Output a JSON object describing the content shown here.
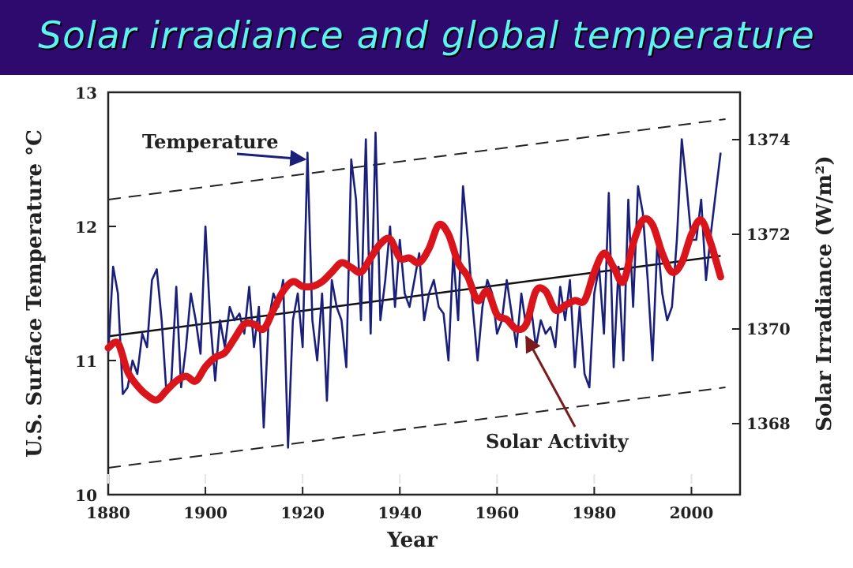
{
  "slide": {
    "title": "Solar irradiance and global temperature"
  },
  "colors": {
    "title_bg": "#2f0a6e",
    "title_text": "#5ef3f3",
    "temperature": "#1a1f7a",
    "solar": "#d9141b",
    "axis": "#222222"
  },
  "chart_data": {
    "type": "line",
    "xlabel": "Year",
    "ylabel_left": "U.S. Surface Temperature °C",
    "ylabel_right": "Solar Irradiance (W/m²)",
    "xlim": [
      1880,
      2010
    ],
    "ylim_left": [
      10.0,
      13.0
    ],
    "ylim_right": [
      1366.5,
      1375.0
    ],
    "x_ticks": [
      1880,
      1900,
      1920,
      1940,
      1960,
      1980,
      2000
    ],
    "y_ticks_left": [
      {
        "value": 10,
        "label": "10"
      },
      {
        "value": 11,
        "label": "11"
      },
      {
        "value": 12,
        "label": "12"
      },
      {
        "value": 13,
        "label": "13"
      }
    ],
    "y_ticks_right": [
      {
        "value": 1368,
        "label": "1368"
      },
      {
        "value": 1370,
        "label": "1370"
      },
      {
        "value": 1372,
        "label": "1372"
      },
      {
        "value": 1374,
        "label": "1374"
      }
    ],
    "annotations": [
      {
        "text": "Temperature",
        "series": "temperature"
      },
      {
        "text": "Solar Activity",
        "series": "solar"
      }
    ],
    "series": [
      {
        "name": "Temperature",
        "axis": "left",
        "x": [
          1880,
          1881,
          1882,
          1883,
          1884,
          1885,
          1886,
          1887,
          1888,
          1889,
          1890,
          1891,
          1892,
          1893,
          1894,
          1895,
          1896,
          1897,
          1898,
          1899,
          1900,
          1901,
          1902,
          1903,
          1904,
          1905,
          1906,
          1907,
          1908,
          1909,
          1910,
          1911,
          1912,
          1913,
          1914,
          1915,
          1916,
          1917,
          1918,
          1919,
          1920,
          1921,
          1922,
          1923,
          1924,
          1925,
          1926,
          1927,
          1928,
          1929,
          1930,
          1931,
          1932,
          1933,
          1934,
          1935,
          1936,
          1937,
          1938,
          1939,
          1940,
          1941,
          1942,
          1943,
          1944,
          1945,
          1946,
          1947,
          1948,
          1949,
          1950,
          1951,
          1952,
          1953,
          1954,
          1955,
          1956,
          1957,
          1958,
          1959,
          1960,
          1961,
          1962,
          1963,
          1964,
          1965,
          1966,
          1967,
          1968,
          1969,
          1970,
          1971,
          1972,
          1973,
          1974,
          1975,
          1976,
          1977,
          1978,
          1979,
          1980,
          1981,
          1982,
          1983,
          1984,
          1985,
          1986,
          1987,
          1988,
          1989,
          1990,
          1991,
          1992,
          1993,
          1994,
          1995,
          1996,
          1997,
          1998,
          1999,
          2000,
          2001,
          2002,
          2003,
          2004,
          2005,
          2006
        ],
        "values": [
          11.05,
          11.7,
          11.5,
          10.75,
          10.8,
          11.0,
          10.9,
          11.2,
          11.1,
          11.6,
          11.68,
          11.3,
          10.75,
          10.85,
          11.55,
          10.8,
          11.1,
          11.5,
          11.3,
          11.05,
          12.0,
          11.3,
          10.85,
          11.3,
          11.1,
          11.4,
          11.3,
          11.35,
          11.2,
          11.55,
          11.1,
          11.4,
          10.5,
          11.3,
          11.5,
          11.4,
          11.6,
          10.35,
          11.3,
          11.5,
          11.1,
          12.55,
          11.3,
          11.0,
          11.5,
          10.7,
          11.6,
          11.4,
          11.3,
          10.95,
          12.5,
          12.2,
          11.3,
          12.65,
          11.2,
          12.7,
          11.3,
          11.6,
          12.0,
          11.4,
          11.9,
          11.5,
          11.4,
          11.6,
          11.8,
          11.3,
          11.5,
          11.6,
          11.4,
          11.35,
          11.0,
          11.8,
          11.3,
          12.3,
          11.9,
          11.4,
          11.0,
          11.4,
          11.6,
          11.5,
          11.2,
          11.3,
          11.6,
          11.35,
          11.1,
          11.5,
          11.25,
          11.4,
          11.1,
          11.3,
          11.2,
          11.25,
          11.1,
          11.55,
          11.3,
          11.6,
          10.95,
          11.4,
          10.9,
          10.8,
          11.5,
          11.7,
          11.2,
          12.25,
          10.95,
          11.7,
          11.0,
          12.2,
          11.4,
          12.3,
          12.1,
          11.6,
          11.0,
          11.9,
          11.5,
          11.3,
          11.4,
          11.9,
          12.65,
          12.3,
          11.9,
          11.9,
          12.2,
          11.6,
          11.95,
          12.25,
          12.55
        ],
        "trend": [
          11.18,
          11.78
        ]
      },
      {
        "name": "Solar Activity",
        "axis": "right",
        "x": [
          1880,
          1882,
          1884,
          1886,
          1888,
          1890,
          1892,
          1894,
          1896,
          1898,
          1900,
          1902,
          1904,
          1906,
          1908,
          1910,
          1912,
          1914,
          1916,
          1918,
          1920,
          1922,
          1924,
          1926,
          1928,
          1930,
          1932,
          1934,
          1936,
          1938,
          1940,
          1942,
          1944,
          1946,
          1948,
          1950,
          1952,
          1954,
          1956,
          1958,
          1960,
          1962,
          1964,
          1966,
          1968,
          1970,
          1972,
          1974,
          1976,
          1978,
          1980,
          1982,
          1984,
          1986,
          1988,
          1990,
          1992,
          1994,
          1996,
          1998,
          2000,
          2002,
          2004,
          2006
        ],
        "values": [
          1369.6,
          1369.7,
          1369.1,
          1368.8,
          1368.6,
          1368.5,
          1368.7,
          1368.9,
          1369.0,
          1368.9,
          1369.2,
          1369.4,
          1369.5,
          1369.8,
          1370.1,
          1370.1,
          1370.0,
          1370.4,
          1370.8,
          1371.0,
          1370.9,
          1370.9,
          1371.0,
          1371.2,
          1371.4,
          1371.3,
          1371.2,
          1371.5,
          1371.8,
          1371.9,
          1371.5,
          1371.5,
          1371.4,
          1371.7,
          1372.2,
          1372.0,
          1371.4,
          1371.1,
          1370.6,
          1370.8,
          1370.3,
          1370.2,
          1370.0,
          1370.1,
          1370.8,
          1370.8,
          1370.4,
          1370.5,
          1370.6,
          1370.6,
          1371.2,
          1371.6,
          1371.3,
          1371.0,
          1371.8,
          1372.3,
          1372.2,
          1371.6,
          1371.2,
          1371.4,
          1372.0,
          1372.3,
          1371.8,
          1371.1
        ]
      }
    ],
    "reference_lines": [
      {
        "style": "dashed",
        "axis": "left",
        "from": [
          1880,
          12.2
        ],
        "to": [
          2007,
          12.8
        ]
      },
      {
        "style": "dashed",
        "axis": "left",
        "from": [
          1880,
          10.2
        ],
        "to": [
          2007,
          10.8
        ]
      }
    ]
  }
}
